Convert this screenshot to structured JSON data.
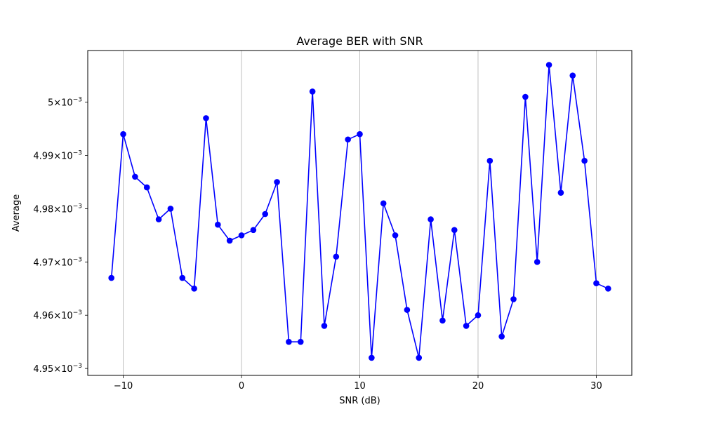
{
  "chart_data": {
    "type": "line",
    "title": "Average BER with SNR",
    "xlabel": "SNR (dB)",
    "ylabel": "Average",
    "xlim": [
      -13,
      33
    ],
    "ylim": [
      0.0049487,
      0.0050097
    ],
    "x_ticks": [
      -10,
      0,
      10,
      20,
      30
    ],
    "x_tick_labels": [
      "−10",
      "0",
      "10",
      "20",
      "30"
    ],
    "y_ticks": [
      0.00495,
      0.00496,
      0.00497,
      0.00498,
      0.00499,
      0.005
    ],
    "y_tick_mantissas": [
      "4.95",
      "4.96",
      "4.97",
      "4.98",
      "4.99",
      "5"
    ],
    "y_tick_base": "10",
    "y_tick_exponent": "−3",
    "grid": "x-major",
    "legend": "none",
    "series": [
      {
        "color": "#0000ff",
        "marker": "circle",
        "x": [
          -11,
          -10,
          -9,
          -8,
          -7,
          -6,
          -5,
          -4,
          -3,
          -2,
          -1,
          0,
          1,
          2,
          3,
          4,
          5,
          6,
          7,
          8,
          9,
          10,
          11,
          12,
          13,
          14,
          15,
          16,
          17,
          18,
          19,
          20,
          21,
          22,
          23,
          24,
          25,
          26,
          27,
          28,
          29,
          30,
          31
        ],
        "y": [
          0.004967,
          0.004994,
          0.004986,
          0.004984,
          0.004978,
          0.00498,
          0.004967,
          0.004965,
          0.004997,
          0.004977,
          0.004974,
          0.004975,
          0.004976,
          0.004979,
          0.004985,
          0.004955,
          0.004955,
          0.005002,
          0.004958,
          0.004971,
          0.004993,
          0.004994,
          0.004952,
          0.004981,
          0.004975,
          0.004961,
          0.004952,
          0.004978,
          0.004959,
          0.004976,
          0.004958,
          0.00496,
          0.004989,
          0.004956,
          0.004963,
          0.005001,
          0.00497,
          0.005007,
          0.004983,
          0.005005,
          0.004989,
          0.004966,
          0.004965
        ]
      }
    ]
  }
}
